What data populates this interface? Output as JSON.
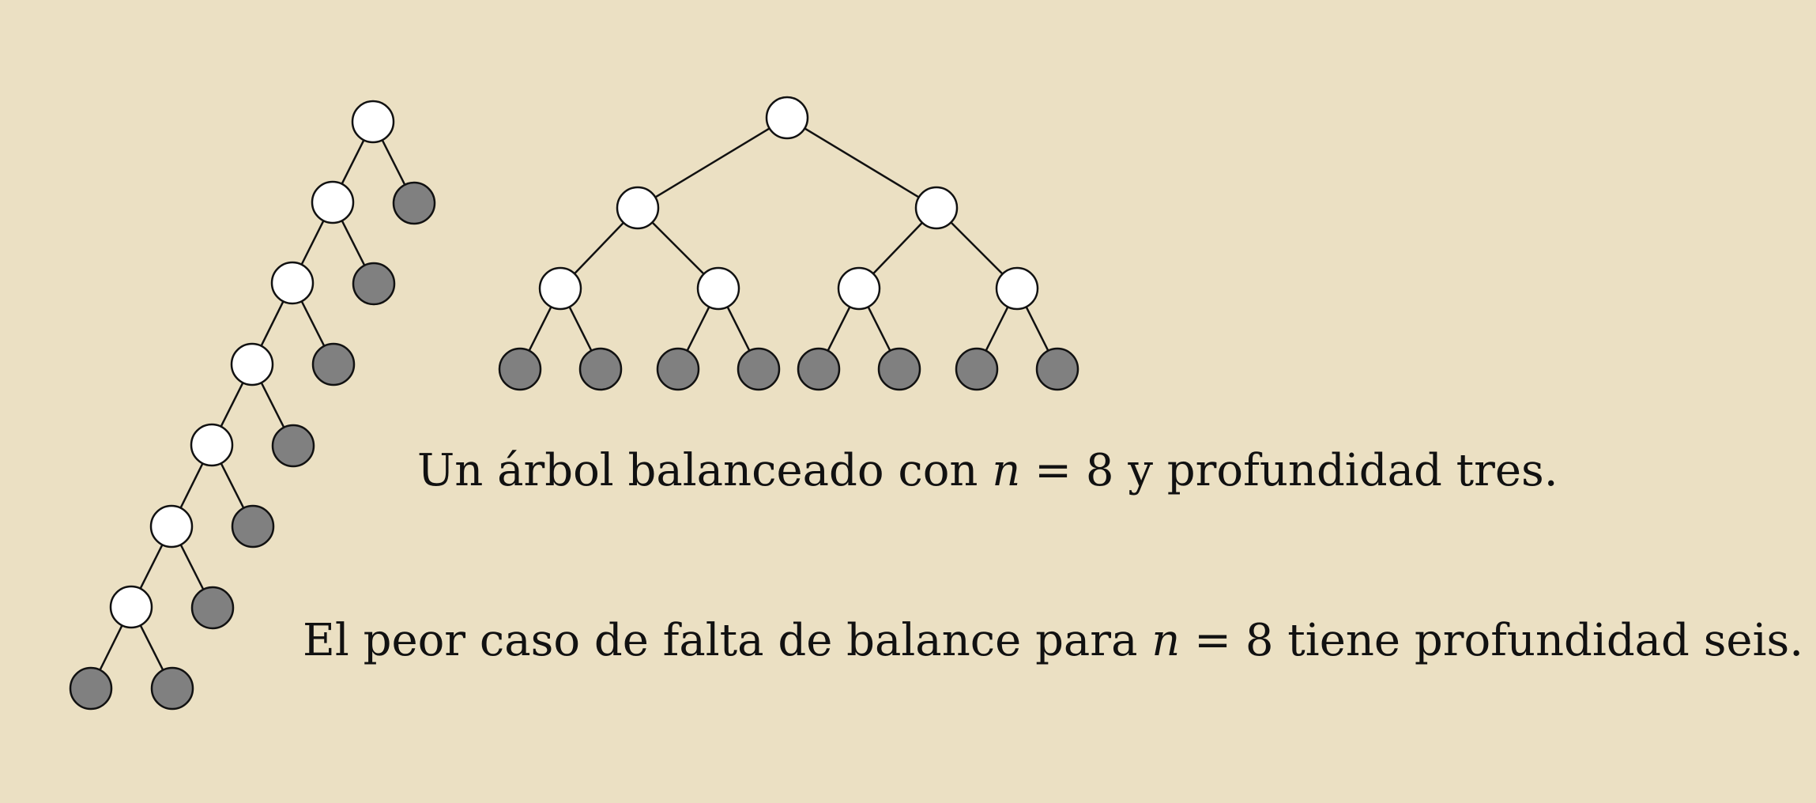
{
  "balanced_caption": {
    "before": "Un árbol balanceado con ",
    "var": "n",
    "eq": " = 8",
    "after": " y profundidad tres."
  },
  "worst_caption": {
    "before": "El peor caso de falta de balance para ",
    "var": "n",
    "eq": " = 8",
    "after": " tiene profundidad seis."
  },
  "colors": {
    "background": "#ebe0c3",
    "internal_node": "#ffffff",
    "leaf_node": "#808080",
    "stroke": "#111111"
  },
  "balanced_tree": {
    "depth": 3,
    "leaves": 8
  },
  "unbalanced_tree": {
    "depth": 6,
    "leaves": 8
  }
}
